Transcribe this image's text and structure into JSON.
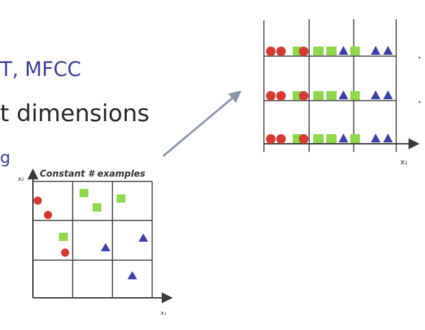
{
  "slide": {
    "features_text": "T, MFCC",
    "dimensions_text": "t dimensions",
    "fragment_text": "g"
  },
  "left_plot": {
    "title": "Constant # examples",
    "x_axis_label": "x₁",
    "y_axis_label": "x₂"
  },
  "right_plot": {
    "x_axis_label": "x₁"
  },
  "colors": {
    "circle": "#d63a33",
    "square": "#8fd84a",
    "triangle": "#3b3fa8",
    "grid": "#3a3a3a",
    "arrow": "#8a95a8"
  }
}
